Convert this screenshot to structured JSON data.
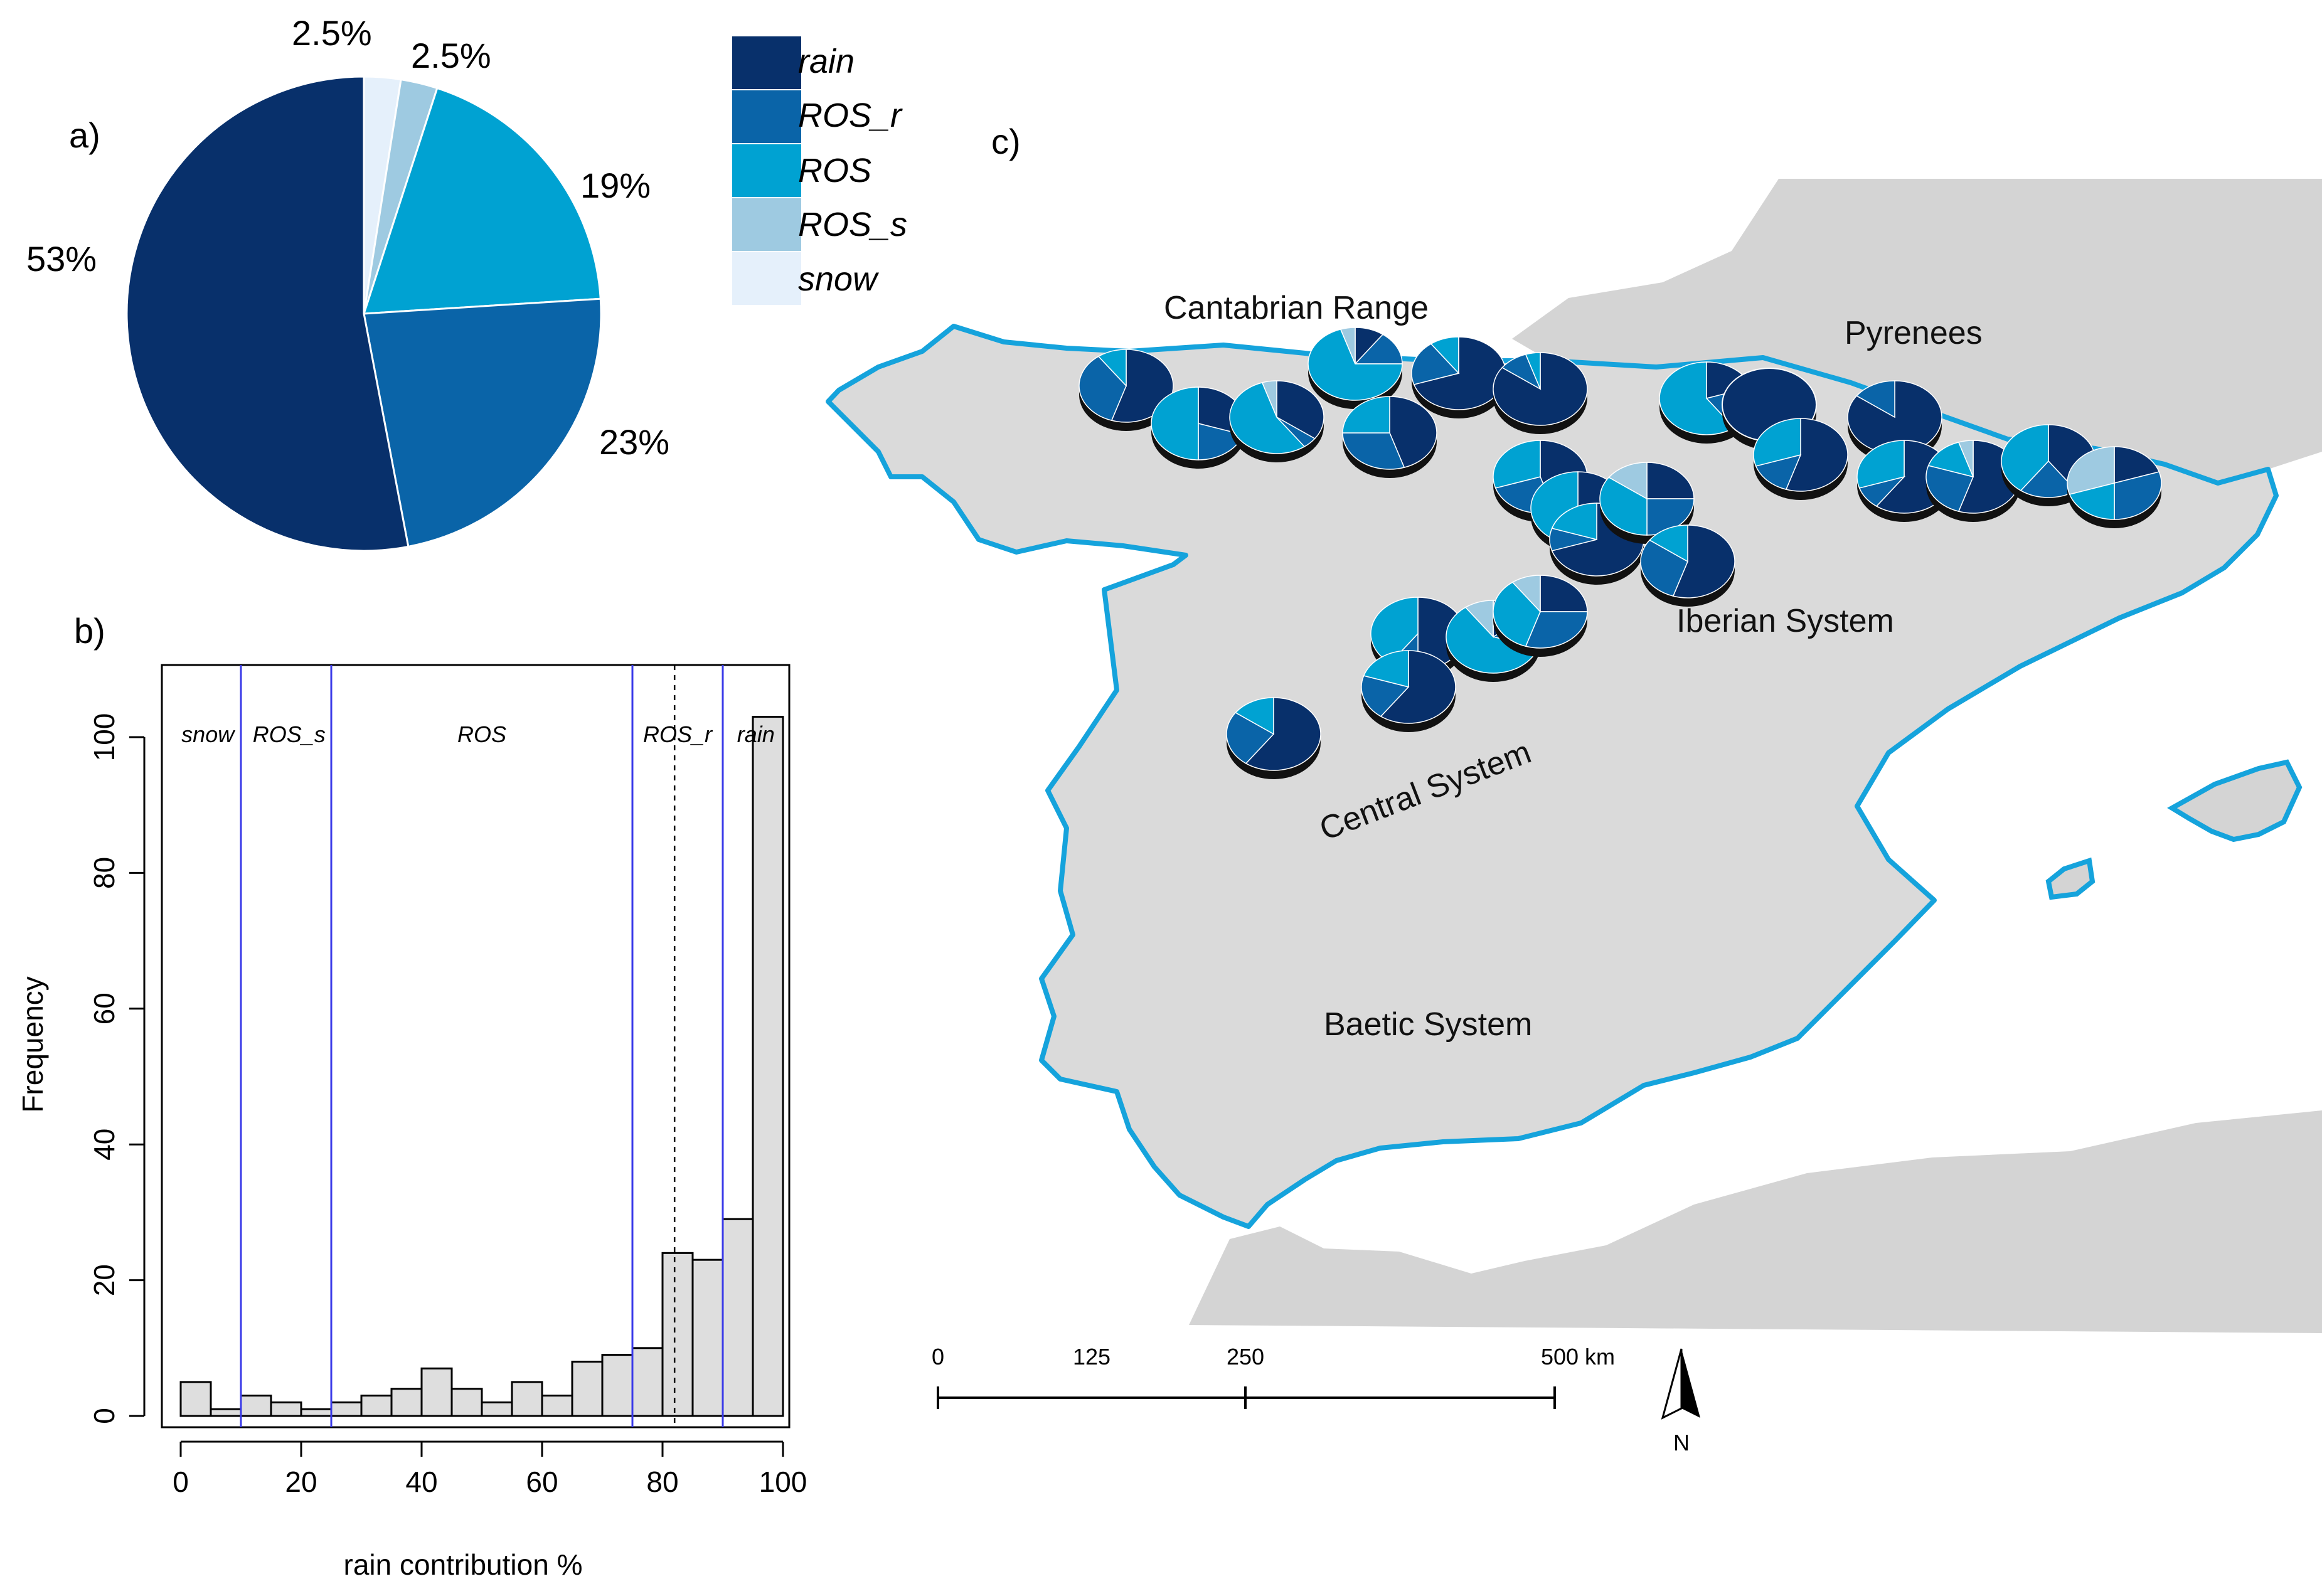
{
  "panels": {
    "a": "a)",
    "b": "b)",
    "c": "c)"
  },
  "pie": {
    "labels": [
      "rain",
      "ROS_r",
      "ROS",
      "ROS_s",
      "snow"
    ],
    "percents": [
      53,
      23,
      19,
      2.5,
      2.5
    ],
    "percent_labels": [
      "53%",
      "23%",
      "19%",
      "2.5%",
      "2.5%"
    ],
    "colors": [
      "#08306b",
      "#0a64a8",
      "#00a2d2",
      "#9ecae1",
      "#e5f0fb"
    ]
  },
  "legend": {
    "items": [
      {
        "label": "rain",
        "color": "#08306b"
      },
      {
        "label": "ROS_r",
        "color": "#0a64a8"
      },
      {
        "label": "ROS",
        "color": "#00a2d2"
      },
      {
        "label": "ROS_s",
        "color": "#9ecae1"
      },
      {
        "label": "snow",
        "color": "#e5f0fb"
      }
    ]
  },
  "chart_data": [
    {
      "type": "pie",
      "labels": [
        "rain",
        "ROS_r",
        "ROS",
        "ROS_s",
        "snow"
      ],
      "values": [
        53,
        23,
        19,
        2.5,
        2.5
      ],
      "value_labels": [
        "53%",
        "23%",
        "19%",
        "2.5%",
        "2.5%"
      ]
    },
    {
      "type": "bar",
      "subtype": "histogram",
      "bin_edges": [
        0,
        5,
        10,
        15,
        20,
        25,
        30,
        35,
        40,
        45,
        50,
        55,
        60,
        65,
        70,
        75,
        80,
        85,
        90,
        95,
        100
      ],
      "values": [
        5,
        1,
        3,
        2,
        1,
        2,
        3,
        4,
        7,
        4,
        2,
        5,
        3,
        8,
        9,
        10,
        24,
        23,
        29,
        103
      ],
      "xlabel": "rain contribution %",
      "ylabel": "Frequency",
      "xlim": [
        0,
        100
      ],
      "ylim": [
        0,
        105
      ],
      "xticks": [
        "0",
        "20",
        "40",
        "60",
        "80",
        "100"
      ],
      "yticks": [
        "0",
        "20",
        "40",
        "60",
        "80",
        "100"
      ],
      "threshold_lines": [
        10,
        25,
        75,
        90
      ],
      "dashed_line": 82,
      "zone_labels": [
        {
          "text": "snow",
          "x": 4.5
        },
        {
          "text": "ROS_s",
          "x": 18
        },
        {
          "text": "ROS",
          "x": 50
        },
        {
          "text": "ROS_r",
          "x": 82.5
        },
        {
          "text": "rain",
          "x": 95.5
        }
      ]
    }
  ],
  "map": {
    "regions": [
      "Cantabrian Range",
      "Pyrenees",
      "Iberian System",
      "Central System",
      "Baetic System"
    ],
    "scale_labels": [
      "0",
      "125",
      "250",
      "500 km"
    ],
    "north_label": "N",
    "station_pies": [
      [
        0.55,
        0.35,
        0.1,
        0.0
      ],
      [
        0.3,
        0.2,
        0.5,
        0.0
      ],
      [
        0.35,
        0.05,
        0.55,
        0.05
      ],
      [
        0.1,
        0.15,
        0.7,
        0.05
      ],
      [
        0.45,
        0.3,
        0.25,
        0.0
      ],
      [
        0.7,
        0.2,
        0.1,
        0.0
      ],
      [
        0.85,
        0.1,
        0.05,
        0.0
      ],
      [
        0.45,
        0.25,
        0.3,
        0.0
      ],
      [
        0.2,
        0.2,
        0.6,
        0.0
      ],
      [
        1.0,
        0.0,
        0.0,
        0.0
      ],
      [
        0.35,
        0.1,
        0.55,
        0.0
      ],
      [
        0.7,
        0.1,
        0.2,
        0.0
      ],
      [
        0.85,
        0.15,
        0.0,
        0.0
      ],
      [
        0.25,
        0.25,
        0.35,
        0.15
      ],
      [
        0.55,
        0.15,
        0.3,
        0.0
      ],
      [
        0.6,
        0.1,
        0.3,
        0.0
      ],
      [
        0.55,
        0.25,
        0.15,
        0.05
      ],
      [
        0.4,
        0.2,
        0.4,
        0.0
      ],
      [
        0.2,
        0.3,
        0.2,
        0.3
      ],
      [
        0.55,
        0.3,
        0.15,
        0.0
      ],
      [
        0.5,
        0.1,
        0.4,
        0.0
      ],
      [
        0.15,
        0.15,
        0.6,
        0.1
      ],
      [
        0.25,
        0.3,
        0.35,
        0.1
      ],
      [
        0.6,
        0.2,
        0.2,
        0.0
      ],
      [
        0.6,
        0.25,
        0.15,
        0.0
      ]
    ]
  }
}
